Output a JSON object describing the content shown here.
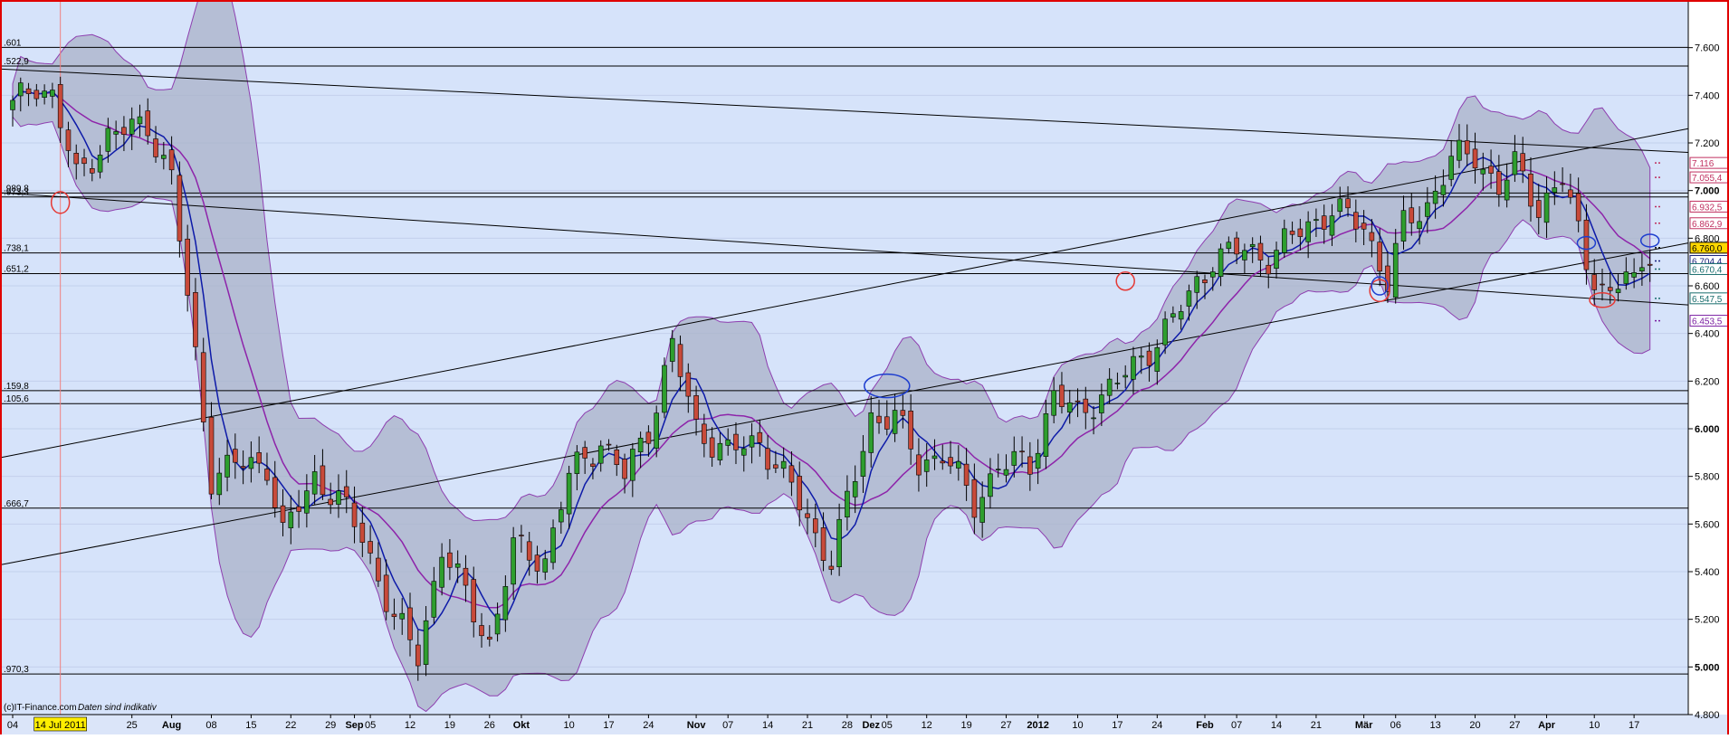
{
  "chart_data": {
    "type": "candlestick",
    "source_note": "(c)IT-Finance.com",
    "disclaimer": "Daten sind indikativ",
    "highlight_date": "14 Jul 2011",
    "ylim": [
      4800,
      7800
    ],
    "y_ticks": [
      {
        "value": 7600,
        "label": "7.600"
      },
      {
        "value": 7400,
        "label": "7.400"
      },
      {
        "value": 7200,
        "label": "7.200"
      },
      {
        "value": 7000,
        "label": "7.000"
      },
      {
        "value": 6800,
        "label": "6.800"
      },
      {
        "value": 6600,
        "label": "6.600"
      },
      {
        "value": 6400,
        "label": "6.400"
      },
      {
        "value": 6200,
        "label": "6.200"
      },
      {
        "value": 6000,
        "label": "6.000"
      },
      {
        "value": 5800,
        "label": "5.800"
      },
      {
        "value": 5600,
        "label": "5.600"
      },
      {
        "value": 5400,
        "label": "5.400"
      },
      {
        "value": 5200,
        "label": "5.200"
      },
      {
        "value": 5000,
        "label": "5.000"
      },
      {
        "value": 4800,
        "label": "4.800"
      }
    ],
    "x_ticks": [
      {
        "i": 0,
        "label": "04",
        "bold": false
      },
      {
        "i": 15,
        "label": "25",
        "bold": false
      },
      {
        "i": 20,
        "label": "Aug",
        "bold": true
      },
      {
        "i": 25,
        "label": "08",
        "bold": false
      },
      {
        "i": 30,
        "label": "15",
        "bold": false
      },
      {
        "i": 35,
        "label": "22",
        "bold": false
      },
      {
        "i": 40,
        "label": "29",
        "bold": false
      },
      {
        "i": 43,
        "label": "Sep",
        "bold": true
      },
      {
        "i": 45,
        "label": "05",
        "bold": false
      },
      {
        "i": 50,
        "label": "12",
        "bold": false
      },
      {
        "i": 55,
        "label": "19",
        "bold": false
      },
      {
        "i": 60,
        "label": "26",
        "bold": false
      },
      {
        "i": 64,
        "label": "Okt",
        "bold": true
      },
      {
        "i": 70,
        "label": "10",
        "bold": false
      },
      {
        "i": 75,
        "label": "17",
        "bold": false
      },
      {
        "i": 80,
        "label": "24",
        "bold": false
      },
      {
        "i": 86,
        "label": "Nov",
        "bold": true
      },
      {
        "i": 90,
        "label": "07",
        "bold": false
      },
      {
        "i": 95,
        "label": "14",
        "bold": false
      },
      {
        "i": 100,
        "label": "21",
        "bold": false
      },
      {
        "i": 105,
        "label": "28",
        "bold": false
      },
      {
        "i": 108,
        "label": "Dez",
        "bold": true
      },
      {
        "i": 110,
        "label": "05",
        "bold": false
      },
      {
        "i": 115,
        "label": "12",
        "bold": false
      },
      {
        "i": 120,
        "label": "19",
        "bold": false
      },
      {
        "i": 125,
        "label": "27",
        "bold": false
      },
      {
        "i": 129,
        "label": "2012",
        "bold": true
      },
      {
        "i": 134,
        "label": "10",
        "bold": false
      },
      {
        "i": 139,
        "label": "17",
        "bold": false
      },
      {
        "i": 144,
        "label": "24",
        "bold": false
      },
      {
        "i": 150,
        "label": "Feb",
        "bold": true
      },
      {
        "i": 154,
        "label": "07",
        "bold": false
      },
      {
        "i": 159,
        "label": "14",
        "bold": false
      },
      {
        "i": 164,
        "label": "21",
        "bold": false
      },
      {
        "i": 170,
        "label": "Mär",
        "bold": true
      },
      {
        "i": 174,
        "label": "06",
        "bold": false
      },
      {
        "i": 179,
        "label": "13",
        "bold": false
      },
      {
        "i": 184,
        "label": "20",
        "bold": false
      },
      {
        "i": 189,
        "label": "27",
        "bold": false
      },
      {
        "i": 193,
        "label": "Apr",
        "bold": true
      },
      {
        "i": 199,
        "label": "10",
        "bold": false
      },
      {
        "i": 204,
        "label": "17",
        "bold": false
      }
    ],
    "horizontal_levels": [
      {
        "value": 7601,
        "label": ".601"
      },
      {
        "value": 7522.9,
        "label": ".522,9"
      },
      {
        "value": 6989.8,
        "label": ".989,8"
      },
      {
        "value": 6973.3,
        "label": ".973,3"
      },
      {
        "value": 6738.1,
        "label": ".738,1"
      },
      {
        "value": 6651.2,
        "label": ".651,2"
      },
      {
        "value": 6159.8,
        "label": ".159,8"
      },
      {
        "value": 6105.6,
        "label": ".105,6"
      },
      {
        "value": 5666.7,
        "label": ".666,7"
      },
      {
        "value": 4970.3,
        "label": ".970,3"
      }
    ],
    "trendlines": [
      {
        "from": [
          0,
          7510
        ],
        "to": [
          210,
          7160
        ]
      },
      {
        "from": [
          0,
          6990
        ],
        "to": [
          210,
          6520
        ]
      },
      {
        "from": [
          0,
          5430
        ],
        "to": [
          210,
          6780
        ]
      },
      {
        "from": [
          0,
          5880
        ],
        "to": [
          210,
          7260
        ]
      }
    ],
    "price_tags": [
      {
        "value": 7116,
        "label": "7.116",
        "color": "#c03060"
      },
      {
        "value": 7055.4,
        "label": "7.055,4",
        "color": "#c03060"
      },
      {
        "value": 6932.5,
        "label": "6.932,5",
        "color": "#c03060"
      },
      {
        "value": 6862.9,
        "label": "6.862,9",
        "color": "#c03060"
      },
      {
        "value": 6760,
        "label": "6.760,0",
        "color": "#000000",
        "bg": "#ffd700"
      },
      {
        "value": 6704.4,
        "label": "6.704,4",
        "color": "#1a237e"
      },
      {
        "value": 6670.4,
        "label": "6.670,4",
        "color": "#1a6e6e"
      },
      {
        "value": 6547.5,
        "label": "6.547,5",
        "color": "#1a6e6e"
      },
      {
        "value": 6453.5,
        "label": "6.453,5",
        "color": "#7b1fa2"
      }
    ],
    "key_points": [
      [
        0,
        7350
      ],
      [
        3,
        7450
      ],
      [
        5,
        7400
      ],
      [
        8,
        7050
      ],
      [
        12,
        7230
      ],
      [
        17,
        7280
      ],
      [
        20,
        7050
      ],
      [
        23,
        6300
      ],
      [
        25,
        5800
      ],
      [
        28,
        5850
      ],
      [
        32,
        5850
      ],
      [
        34,
        5550
      ],
      [
        38,
        5800
      ],
      [
        41,
        5700
      ],
      [
        44,
        5550
      ],
      [
        48,
        5200
      ],
      [
        51,
        5050
      ],
      [
        54,
        5500
      ],
      [
        57,
        5300
      ],
      [
        60,
        5100
      ],
      [
        63,
        5500
      ],
      [
        67,
        5450
      ],
      [
        70,
        5800
      ],
      [
        74,
        5950
      ],
      [
        77,
        5800
      ],
      [
        80,
        6000
      ],
      [
        83,
        6350
      ],
      [
        86,
        6000
      ],
      [
        90,
        5900
      ],
      [
        94,
        5950
      ],
      [
        98,
        5750
      ],
      [
        101,
        5550
      ],
      [
        103,
        5450
      ],
      [
        106,
        5800
      ],
      [
        108,
        6050
      ],
      [
        111,
        6050
      ],
      [
        114,
        5850
      ],
      [
        117,
        5900
      ],
      [
        121,
        5680
      ],
      [
        124,
        5850
      ],
      [
        128,
        5850
      ],
      [
        131,
        6150
      ],
      [
        134,
        6050
      ],
      [
        137,
        6150
      ],
      [
        141,
        6250
      ],
      [
        145,
        6420
      ],
      [
        148,
        6550
      ],
      [
        151,
        6720
      ],
      [
        155,
        6750
      ],
      [
        158,
        6720
      ],
      [
        162,
        6830
      ],
      [
        166,
        6920
      ],
      [
        170,
        6850
      ],
      [
        173,
        6620
      ],
      [
        175,
        6850
      ],
      [
        178,
        6940
      ],
      [
        181,
        7130
      ],
      [
        184,
        7150
      ],
      [
        187,
        7010
      ],
      [
        189,
        7100
      ],
      [
        192,
        6930
      ],
      [
        195,
        7050
      ],
      [
        198,
        6700
      ],
      [
        201,
        6550
      ],
      [
        203,
        6650
      ],
      [
        204,
        6600
      ],
      [
        206,
        6760
      ]
    ]
  }
}
